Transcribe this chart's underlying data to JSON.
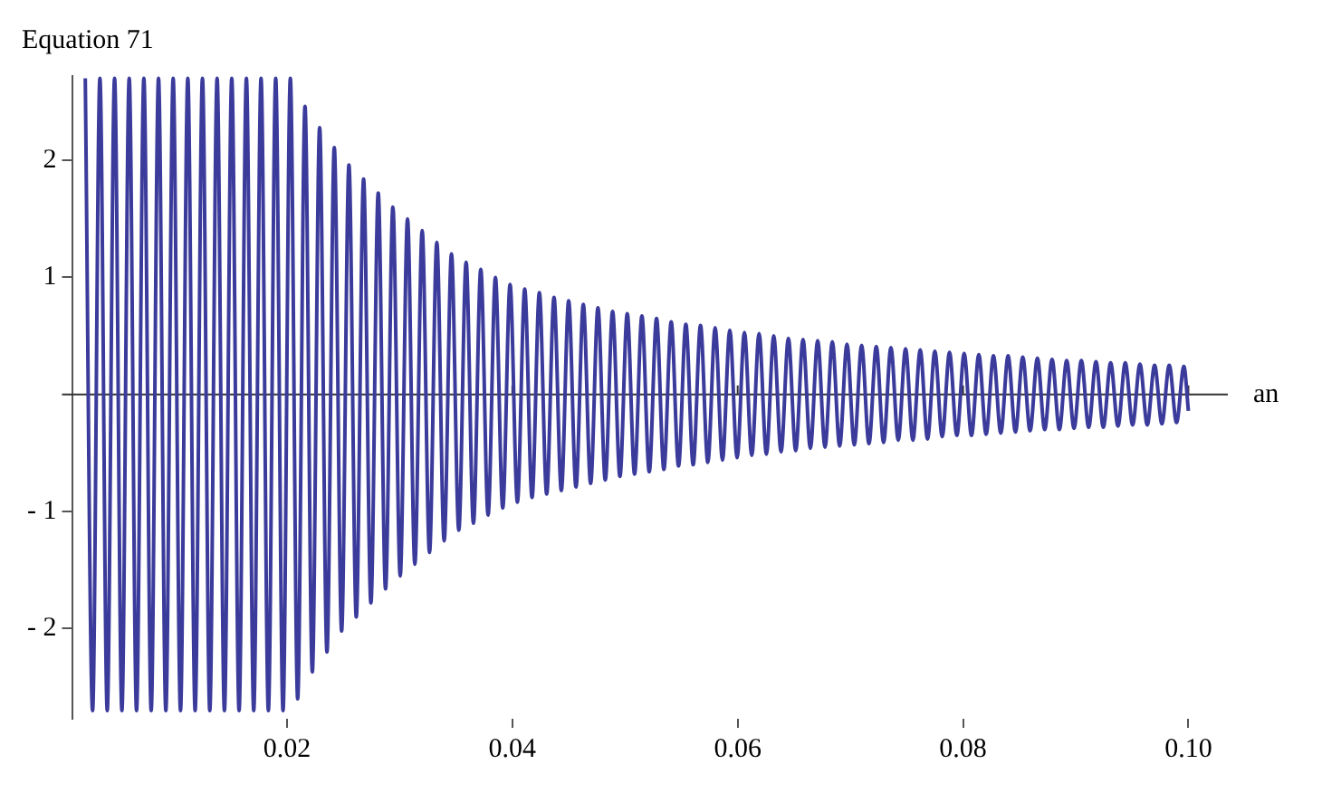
{
  "chart_data": {
    "type": "line",
    "ylabel": "Equation 71",
    "xlabel": "an",
    "xlim": [
      0.001,
      0.1035
    ],
    "ylim": [
      -2.77,
      2.72
    ],
    "xticks": [
      0.02,
      0.04,
      0.06,
      0.08,
      {
        "value": 0.1,
        "label": "0.10"
      }
    ],
    "yticks": [
      {
        "value": -2,
        "label": "- 2"
      },
      {
        "value": -1,
        "label": "- 1"
      },
      1,
      2
    ],
    "grid": false,
    "legend": false,
    "marker": "none",
    "line_style": "solid",
    "series": [
      {
        "color": "#3b3b9c",
        "x": [
          0.0021,
          0.00275,
          0.0034,
          0.00405,
          0.0047,
          0.00535,
          0.006,
          0.00665,
          0.0073,
          0.00795,
          0.0086,
          0.00925,
          0.0099,
          0.01055,
          0.0112,
          0.01185,
          0.0125,
          0.01315,
          0.0138,
          0.01445,
          0.0151,
          0.01575,
          0.0164,
          0.01705,
          0.0177,
          0.01835,
          0.019,
          0.01965,
          0.0203,
          0.02095,
          0.0216,
          0.02225,
          0.0229,
          0.02355,
          0.0242,
          0.02485,
          0.0255,
          0.02615,
          0.0268,
          0.02745,
          0.0281,
          0.02875,
          0.0294,
          0.03005,
          0.0307,
          0.03135,
          0.032,
          0.03265,
          0.0333,
          0.03395,
          0.0346,
          0.03525,
          0.0359,
          0.03655,
          0.0372,
          0.03785,
          0.0385,
          0.03915,
          0.0398,
          0.04045,
          0.0411,
          0.04175,
          0.0424,
          0.04305,
          0.0437,
          0.04435,
          0.045,
          0.04565,
          0.0463,
          0.04695,
          0.0476,
          0.04825,
          0.0489,
          0.04955,
          0.0502,
          0.05085,
          0.0515,
          0.05215,
          0.0528,
          0.05345,
          0.0541,
          0.05475,
          0.0554,
          0.05605,
          0.0567,
          0.05735,
          0.058,
          0.05865,
          0.0593,
          0.05995,
          0.0606,
          0.06125,
          0.0619,
          0.06255,
          0.0632,
          0.06385,
          0.0645,
          0.06515,
          0.0658,
          0.06645,
          0.0671,
          0.06775,
          0.0684,
          0.06905,
          0.0697,
          0.07035,
          0.071,
          0.07165,
          0.0723,
          0.07295,
          0.0736,
          0.07425,
          0.0749,
          0.07555,
          0.0762,
          0.07685,
          0.0775,
          0.07815,
          0.0788,
          0.07945,
          0.0801,
          0.08075,
          0.0814,
          0.08205,
          0.0827,
          0.08335,
          0.084,
          0.08465,
          0.0853,
          0.08595,
          0.0866,
          0.08725,
          0.0879,
          0.08855,
          0.0892,
          0.08985,
          0.0905,
          0.09115,
          0.0918,
          0.09245,
          0.0931,
          0.09375,
          0.0944,
          0.09505,
          0.0957,
          0.09635,
          0.097,
          0.09765,
          0.0983,
          0.09895,
          0.0996,
          0.1
        ],
        "values": [
          2.7,
          -2.7,
          2.7,
          -2.7,
          2.7,
          -2.7,
          2.7,
          -2.7,
          2.7,
          -2.7,
          2.7,
          -2.7,
          2.7,
          -2.7,
          2.7,
          -2.7,
          2.7,
          -2.7,
          2.7,
          -2.7,
          2.7,
          -2.7,
          2.7,
          -2.7,
          2.7,
          -2.7,
          2.7,
          -2.7,
          2.7,
          -2.6,
          2.46,
          -2.37,
          2.28,
          -2.2,
          2.11,
          -2.02,
          1.96,
          -1.9,
          1.84,
          -1.78,
          1.72,
          -1.66,
          1.6,
          -1.55,
          1.5,
          -1.45,
          1.4,
          -1.35,
          1.3,
          -1.25,
          1.2,
          -1.16,
          1.13,
          -1.1,
          1.07,
          -1.03,
          1.0,
          -0.97,
          0.94,
          -0.92,
          0.9,
          -0.88,
          0.87,
          -0.85,
          0.83,
          -0.82,
          0.8,
          -0.79,
          0.77,
          -0.76,
          0.74,
          -0.73,
          0.71,
          -0.7,
          0.69,
          -0.68,
          0.67,
          -0.66,
          0.65,
          -0.64,
          0.62,
          -0.61,
          0.6,
          -0.6,
          0.59,
          -0.58,
          0.57,
          -0.56,
          0.55,
          -0.54,
          0.53,
          -0.52,
          0.52,
          -0.51,
          0.5,
          -0.49,
          0.48,
          -0.48,
          0.47,
          -0.46,
          0.46,
          -0.45,
          0.45,
          -0.44,
          0.43,
          -0.43,
          0.42,
          -0.42,
          0.41,
          -0.41,
          0.4,
          -0.39,
          0.39,
          -0.39,
          0.38,
          -0.38,
          0.37,
          -0.36,
          0.36,
          -0.35,
          0.35,
          -0.35,
          0.34,
          -0.34,
          0.33,
          -0.33,
          0.33,
          -0.32,
          0.32,
          -0.31,
          0.31,
          -0.3,
          0.3,
          -0.3,
          0.29,
          -0.29,
          0.29,
          -0.28,
          0.28,
          -0.28,
          0.27,
          -0.27,
          0.27,
          -0.26,
          0.26,
          -0.26,
          0.25,
          -0.25,
          0.25,
          -0.24,
          0.24,
          -0.14
        ]
      }
    ]
  }
}
